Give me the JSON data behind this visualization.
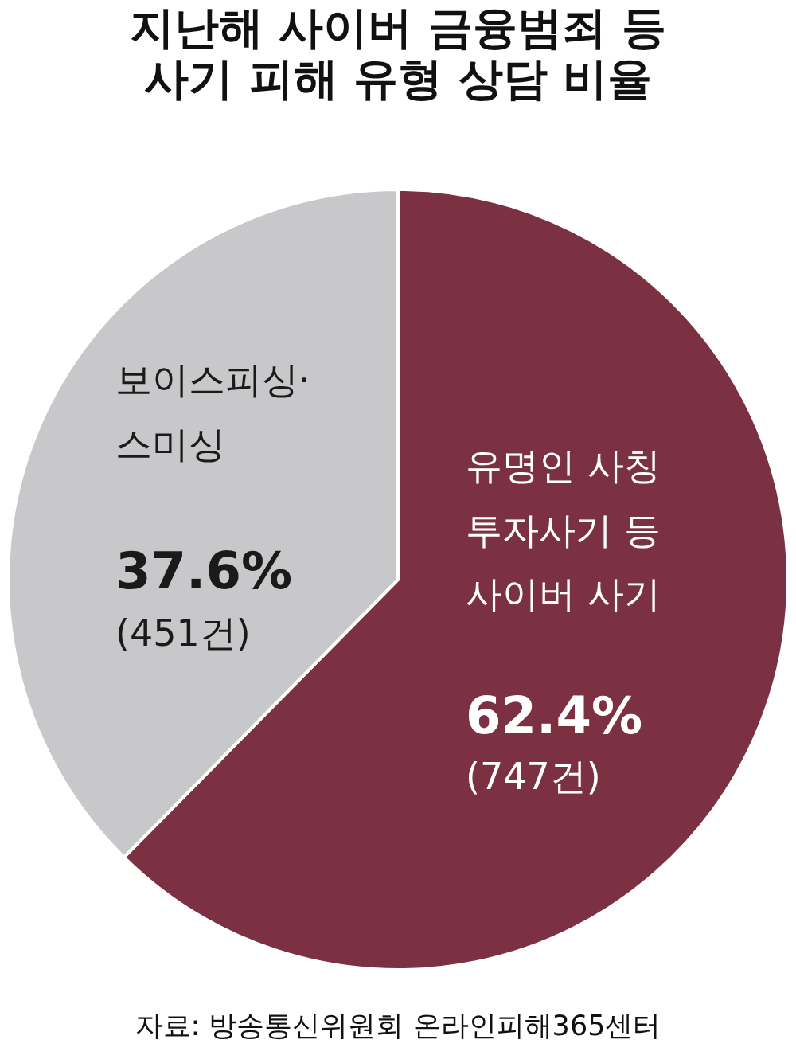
{
  "chart_data": {
    "type": "pie",
    "title": "지난해 사이버 금융범죄 등\n사기 피해 유형 상담 비율",
    "categories": [
      "유명인 사칭\n투자사기 등\n사이버 사기",
      "보이스피싱·\n스미싱"
    ],
    "values": [
      62.4,
      37.6
    ],
    "colors": [
      "#7b3142",
      "#c8c8ca"
    ],
    "value_labels": [
      "62.4%",
      "37.6%"
    ],
    "annotations": [
      "(747건)",
      "(451건)",
      "자료: 방송통신위원회 온라인피해365센터"
    ]
  }
}
